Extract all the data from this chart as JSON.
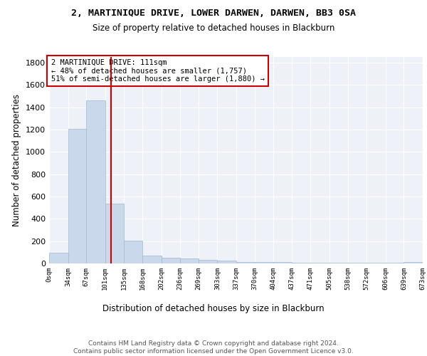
{
  "title": "2, MARTINIQUE DRIVE, LOWER DARWEN, DARWEN, BB3 0SA",
  "subtitle": "Size of property relative to detached houses in Blackburn",
  "xlabel": "Distribution of detached houses by size in Blackburn",
  "ylabel": "Number of detached properties",
  "bar_values": [
    95,
    1205,
    1462,
    535,
    205,
    70,
    50,
    45,
    35,
    25,
    15,
    10,
    10,
    5,
    5,
    5,
    5,
    5,
    5,
    15
  ],
  "bar_edges": [
    0,
    34,
    67,
    101,
    135,
    168,
    202,
    236,
    269,
    303,
    337,
    370,
    404,
    437,
    471,
    505,
    538,
    572,
    606,
    639,
    673
  ],
  "tick_labels": [
    "0sqm",
    "34sqm",
    "67sqm",
    "101sqm",
    "135sqm",
    "168sqm",
    "202sqm",
    "236sqm",
    "269sqm",
    "303sqm",
    "337sqm",
    "370sqm",
    "404sqm",
    "437sqm",
    "471sqm",
    "505sqm",
    "538sqm",
    "572sqm",
    "606sqm",
    "639sqm",
    "673sqm"
  ],
  "bar_color": "#c9d9eb",
  "bar_edge_color": "#a0b8d0",
  "bg_color": "#eef2f8",
  "grid_color": "#ffffff",
  "vline_x": 111,
  "vline_color": "#cc0000",
  "annotation_text": "2 MARTINIQUE DRIVE: 111sqm\n← 48% of detached houses are smaller (1,757)\n51% of semi-detached houses are larger (1,880) →",
  "annotation_box_color": "#ffffff",
  "annotation_box_edge": "#cc0000",
  "footer_text_full": "Contains HM Land Registry data © Crown copyright and database right 2024.\nContains public sector information licensed under the Open Government Licence v3.0.",
  "ylim": [
    0,
    1850
  ],
  "yticks": [
    0,
    200,
    400,
    600,
    800,
    1000,
    1200,
    1400,
    1600,
    1800
  ]
}
